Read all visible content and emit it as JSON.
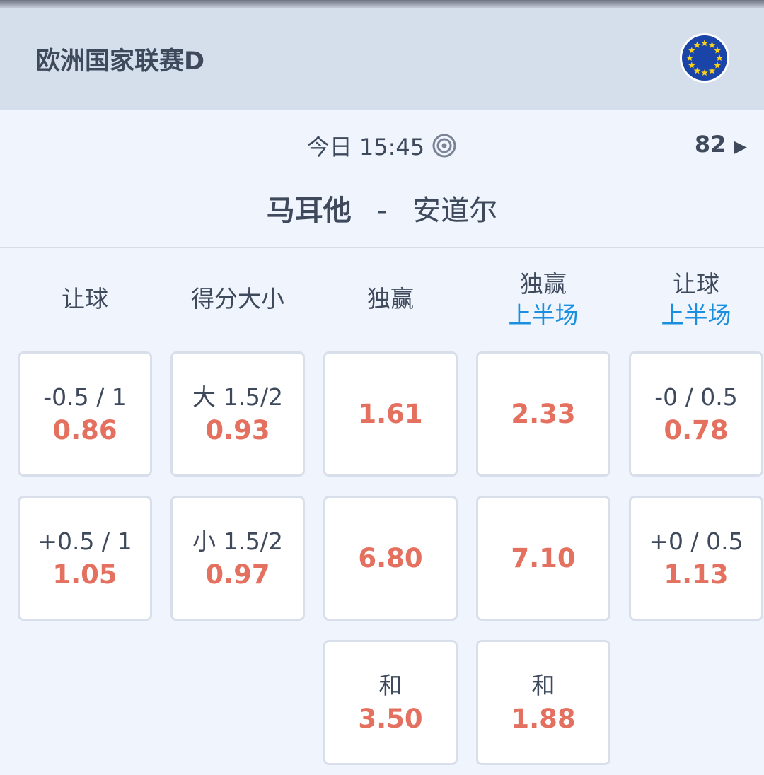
{
  "header": {
    "league": "欧洲国家联赛D",
    "flag_icon": "eu-flag-icon"
  },
  "match": {
    "time": "今日 15:45",
    "live_icon": "target-icon",
    "market_count": "82",
    "home": "马耳他",
    "separator": "-",
    "away": "安道尔"
  },
  "columns": [
    {
      "title": "让球",
      "sub": ""
    },
    {
      "title": "得分大小",
      "sub": ""
    },
    {
      "title": "独赢",
      "sub": ""
    },
    {
      "title": "独赢",
      "sub": "上半场"
    },
    {
      "title": "让球",
      "sub": "上半场"
    }
  ],
  "rows": [
    [
      {
        "line": "-0.5 / 1",
        "odd": "0.86"
      },
      {
        "line": "大 1.5/2",
        "odd": "0.93"
      },
      {
        "line": "",
        "odd": "1.61"
      },
      {
        "line": "",
        "odd": "2.33"
      },
      {
        "line": "-0 / 0.5",
        "odd": "0.78"
      }
    ],
    [
      {
        "line": "+0.5 / 1",
        "odd": "1.05"
      },
      {
        "line": "小 1.5/2",
        "odd": "0.97"
      },
      {
        "line": "",
        "odd": "6.80"
      },
      {
        "line": "",
        "odd": "7.10"
      },
      {
        "line": "+0 / 0.5",
        "odd": "1.13"
      }
    ],
    [
      null,
      null,
      {
        "line": "和",
        "odd": "3.50"
      },
      {
        "line": "和",
        "odd": "1.88"
      },
      null
    ]
  ],
  "colors": {
    "odd": "#e4705f",
    "sub": "#1a8fe0",
    "header_bg": "#d5deeb"
  }
}
